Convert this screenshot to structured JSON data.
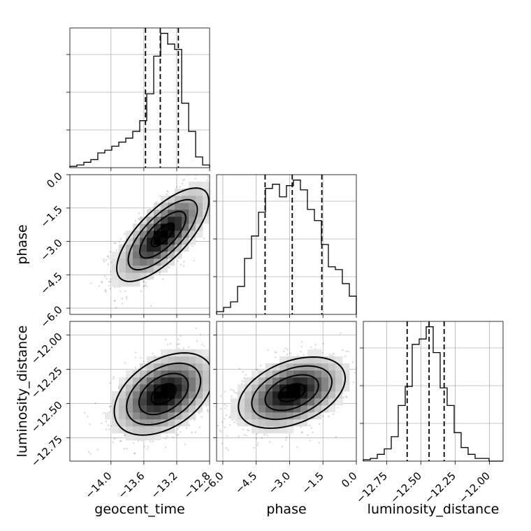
{
  "chart_data": {
    "type": "corner",
    "parameters": [
      "geocent_time",
      "phase",
      "luminosity_distance"
    ],
    "axes": {
      "geocent_time": {
        "lim": [
          -14.5,
          -12.8
        ],
        "ticks": [
          -14.0,
          -13.6,
          -13.2,
          -12.8
        ],
        "tick_labels": [
          "−14.0",
          "−13.6",
          "−13.2",
          "−12.8"
        ]
      },
      "phase": {
        "lim": [
          -6.28,
          0.0
        ],
        "ticks": [
          -6.0,
          -4.5,
          -3.0,
          -1.5,
          0.0
        ],
        "tick_labels": [
          "−6.0",
          "−4.5",
          "−3.0",
          "−1.5",
          "0.0"
        ]
      },
      "luminosity_distance": {
        "lim": [
          -12.92,
          -11.9
        ],
        "ticks": [
          -12.75,
          -12.5,
          -12.25,
          -12.0
        ],
        "tick_labels": [
          "−12.75",
          "−12.50",
          "−12.25",
          "−12.00"
        ]
      }
    },
    "histograms": {
      "geocent_time": {
        "bin_edges": [
          -14.5,
          -14.415,
          -14.33,
          -14.245,
          -14.16,
          -14.075,
          -13.99,
          -13.905,
          -13.82,
          -13.735,
          -13.65,
          -13.565,
          -13.48,
          -13.395,
          -13.31,
          -13.225,
          -13.14,
          -13.055,
          -12.97,
          -12.885,
          -12.8
        ],
        "counts": [
          1,
          2,
          4,
          6,
          11,
          13,
          16,
          19,
          22,
          27,
          35,
          55,
          83,
          100,
          92,
          88,
          48,
          27,
          8,
          2
        ],
        "quantiles": [
          -13.58,
          -13.4,
          -13.18
        ]
      },
      "phase": {
        "bin_edges": [
          -6.28,
          -5.966,
          -5.652,
          -5.338,
          -5.024,
          -4.71,
          -4.396,
          -4.082,
          -3.768,
          -3.454,
          -3.14,
          -2.826,
          -2.512,
          -2.198,
          -1.884,
          -1.57,
          -1.256,
          -0.942,
          -0.628,
          -0.314,
          0.0
        ],
        "counts": [
          2,
          5,
          9,
          20,
          40,
          56,
          73,
          90,
          93,
          84,
          92,
          96,
          89,
          75,
          67,
          50,
          34,
          32,
          22,
          13
        ],
        "quantiles": [
          -4.1,
          -2.88,
          -1.55
        ]
      },
      "luminosity_distance": {
        "bin_edges": [
          -12.92,
          -12.869,
          -12.818,
          -12.767,
          -12.716,
          -12.665,
          -12.614,
          -12.563,
          -12.512,
          -12.461,
          -12.41,
          -12.359,
          -12.308,
          -12.257,
          -12.206,
          -12.155,
          -12.104,
          -12.053,
          -12.002,
          -11.951,
          -11.9
        ],
        "counts": [
          1,
          2,
          5,
          9,
          18,
          41,
          55,
          86,
          90,
          99,
          80,
          54,
          41,
          21,
          10,
          5,
          2,
          2,
          0,
          0
        ],
        "quantiles": [
          -12.6,
          -12.44,
          -12.33
        ]
      }
    },
    "scatter_panels": [
      {
        "x": "geocent_time",
        "y": "phase",
        "center": [
          -13.37,
          -2.7
        ],
        "spread": [
          0.28,
          1.05
        ],
        "correlation": 0.72,
        "contour_levels": [
          0.5,
          1.0,
          1.5,
          2.0
        ]
      },
      {
        "x": "geocent_time",
        "y": "luminosity_distance",
        "center": [
          -13.36,
          -12.43
        ],
        "spread": [
          0.3,
          0.15
        ],
        "correlation": 0.42,
        "contour_levels": [
          0.5,
          1.0,
          1.5,
          2.0
        ]
      },
      {
        "x": "phase",
        "y": "luminosity_distance",
        "center": [
          -2.9,
          -12.42
        ],
        "spread": [
          1.2,
          0.13
        ],
        "correlation": 0.4,
        "contour_levels": [
          0.5,
          1.0,
          1.5,
          2.0
        ]
      }
    ],
    "grid": true
  }
}
